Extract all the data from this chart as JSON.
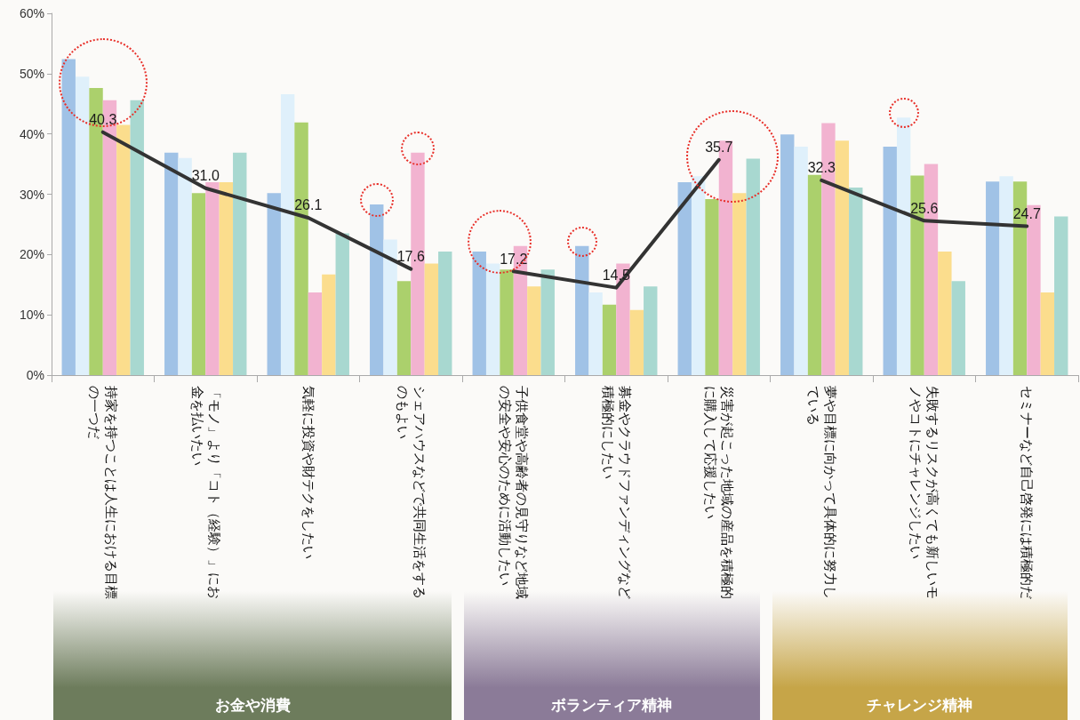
{
  "chart_data": {
    "type": "bar",
    "categories": [
      "持家を持つことは人生における目標の一つだ",
      "「モノ」より「コト（経験）」にお金を払いたい",
      "気軽に投資や財テクをしたい",
      "シェアハウスなどで共同生活をするのもよい",
      "子供食堂や高齢者の見守りなど地域の安全や安心のために活動したい",
      "募金やクラウドファンディングなど積極的にしたい",
      "災害が起こった地域の産品を積極的に購入して応援したい",
      "夢や目標に向かって具体的に努力している",
      "失敗するリスクが高くても新しいモノやコトにチャレンジしたい",
      "セミナーなど自己啓発には積極的だ"
    ],
    "series": [
      {
        "color": "#a0c2e6",
        "values": [
          52.4,
          36.9,
          30.2,
          28.3,
          20.5,
          21.4,
          32.0,
          39.9,
          37.9,
          32.1
        ]
      },
      {
        "color": "#dff0fb",
        "values": [
          49.5,
          36.0,
          46.6,
          22.5,
          18.5,
          13.7,
          33.0,
          37.9,
          42.7,
          33.0
        ]
      },
      {
        "color": "#abd06c",
        "values": [
          47.6,
          30.2,
          41.9,
          15.6,
          17.5,
          11.7,
          29.2,
          33.2,
          33.1,
          32.1
        ]
      },
      {
        "color": "#f2b3d0",
        "values": [
          45.6,
          32.0,
          13.7,
          36.9,
          21.4,
          18.5,
          38.9,
          41.8,
          35.0,
          28.2
        ]
      },
      {
        "color": "#fbdd8d",
        "values": [
          41.5,
          32.0,
          16.7,
          18.5,
          14.7,
          10.8,
          30.2,
          38.9,
          20.5,
          13.7
        ]
      },
      {
        "color": "#a8d8d0",
        "values": [
          45.6,
          36.9,
          23.5,
          20.5,
          17.5,
          14.7,
          35.9,
          31.1,
          15.6,
          26.3
        ]
      },
      {
        "type": "line",
        "color": "#333333",
        "values": [
          40.3,
          31.0,
          26.1,
          17.6,
          null,
          null,
          null,
          null,
          null,
          null
        ],
        "value_labels": [
          "40.3",
          "31.0",
          "26.1",
          "17.6",
          null,
          null,
          null,
          null,
          null,
          null
        ]
      },
      {
        "type": "line",
        "color": "#333333",
        "values": [
          null,
          null,
          null,
          null,
          17.2,
          14.5,
          35.7,
          null,
          null,
          null
        ],
        "value_labels": [
          null,
          null,
          null,
          null,
          "17.2",
          "14.5",
          "35.7",
          null,
          null,
          null
        ]
      },
      {
        "type": "line",
        "color": "#333333",
        "values": [
          null,
          null,
          null,
          null,
          null,
          null,
          null,
          32.3,
          25.6,
          24.7
        ],
        "value_labels": [
          null,
          null,
          null,
          null,
          null,
          null,
          null,
          "32.3",
          "25.6",
          "24.7"
        ]
      }
    ],
    "ylim": [
      0,
      60
    ],
    "yticks": [
      {
        "value": 0,
        "label": "0%"
      },
      {
        "value": 10,
        "label": "10%"
      },
      {
        "value": 20,
        "label": "20%"
      },
      {
        "value": 30,
        "label": "30%"
      },
      {
        "value": 40,
        "label": "40%"
      },
      {
        "value": 50,
        "label": "50%"
      },
      {
        "value": 60,
        "label": "60%"
      }
    ],
    "annotations": [
      "お金や消費",
      "ボランティア精神",
      "チャレンジ精神"
    ],
    "grid": false,
    "marker": "none",
    "line_style": "solid"
  }
}
